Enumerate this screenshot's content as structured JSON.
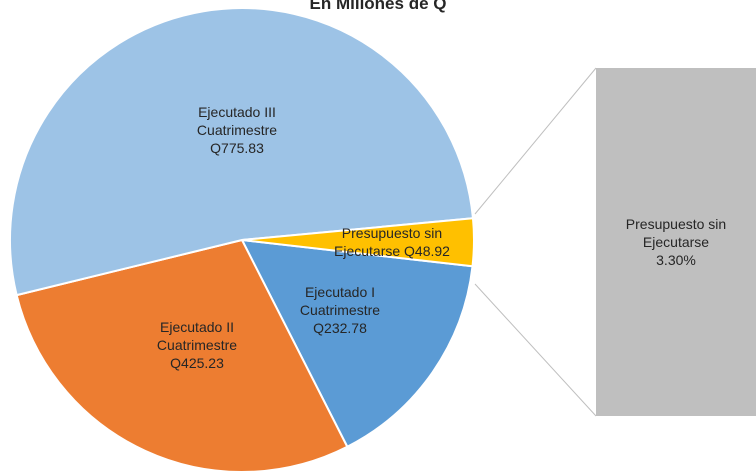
{
  "chart_data": {
    "type": "pie",
    "title": "En Millones de Q",
    "categories": [
      "Ejecutado I Cuatrimestre",
      "Ejecutado II Cuatrimestre",
      "Ejecutado III Cuatrimestre",
      "Presupuesto sin Ejecutarse"
    ],
    "values": [
      232.78,
      425.23,
      775.83,
      48.92
    ],
    "value_labels": [
      "Q232.78",
      "Q425.23",
      "Q775.83",
      "Q48.92"
    ],
    "colors": [
      "#5b9bd5",
      "#ed7d31",
      "#9dc3e6",
      "#ffc000"
    ],
    "bar_value": 3.3,
    "bar_value_label": "3.30%",
    "bar_color": "#bfbfbf"
  }
}
